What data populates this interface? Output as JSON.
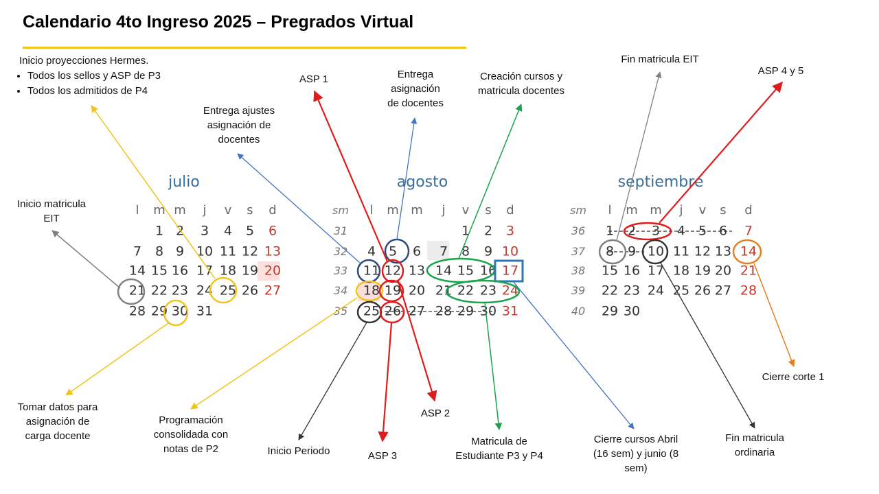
{
  "title": "Calendario 4to Ingreso 2025 – Pregrados Virtual",
  "months": [
    {
      "name": "julio",
      "headers": [
        "l",
        "m",
        "m",
        "j",
        "v",
        "s",
        "d"
      ],
      "weeks": [
        [
          "",
          "1",
          "2",
          "3",
          "4",
          "5",
          "6"
        ],
        [
          "7",
          "8",
          "9",
          "10",
          "11",
          "12",
          "13"
        ],
        [
          "14",
          "15",
          "16",
          "17",
          "18",
          "19",
          "20"
        ],
        [
          "21",
          "22",
          "23",
          "24",
          "25",
          "26",
          "27"
        ],
        [
          "28",
          "29",
          "30",
          "31",
          "",
          "",
          ""
        ]
      ]
    },
    {
      "name": "agosto",
      "week_header": "sm",
      "headers": [
        "l",
        "m",
        "m",
        "j",
        "v",
        "s",
        "d"
      ],
      "week_numbers": [
        "31",
        "32",
        "33",
        "34",
        "35"
      ],
      "weeks": [
        [
          "",
          "",
          "",
          "",
          "1",
          "2",
          "3"
        ],
        [
          "4",
          "5",
          "6",
          "7",
          "8",
          "9",
          "10"
        ],
        [
          "11",
          "12",
          "13",
          "14",
          "15",
          "16",
          "17"
        ],
        [
          "18",
          "19",
          "20",
          "21",
          "22",
          "23",
          "24"
        ],
        [
          "25",
          "26",
          "27",
          "28",
          "29",
          "30",
          "31"
        ]
      ]
    },
    {
      "name": "septiembre",
      "week_header": "sm",
      "headers": [
        "l",
        "m",
        "m",
        "j",
        "v",
        "s",
        "d"
      ],
      "week_numbers": [
        "36",
        "37",
        "38",
        "39",
        "40"
      ],
      "weeks": [
        [
          "1",
          "2",
          "3",
          "4",
          "5",
          "6",
          "7"
        ],
        [
          "8",
          "9",
          "10",
          "11",
          "12",
          "13",
          "14"
        ],
        [
          "15",
          "16",
          "17",
          "18",
          "19",
          "20",
          "21"
        ],
        [
          "22",
          "23",
          "24",
          "25",
          "26",
          "27",
          "28"
        ],
        [
          "29",
          "30",
          "",
          "",
          "",
          "",
          ""
        ]
      ]
    }
  ],
  "annotations": {
    "hermes": {
      "heading": "Inicio proyecciones Hermes.",
      "bullets": [
        "Todos los sellos y ASP de P3",
        "Todos los admitidos de P4"
      ]
    },
    "inicio_matricula_eit": "Inicio matricula\nEIT",
    "entrega_ajustes": "Entrega ajustes\nasignación de\ndocentes",
    "asp1": "ASP 1",
    "entrega_asignacion": "Entrega\nasignación\nde docentes",
    "creacion_cursos": "Creación cursos y\nmatricula docentes",
    "fin_matricula_eit": "Fin matricula EIT",
    "asp45": "ASP 4 y 5",
    "tomar_datos": "Tomar datos para\nasignación de\ncarga docente",
    "programacion": "Programación\nconsolidada con\nnotas de P2",
    "inicio_periodo": "Inicio Periodo",
    "asp3": "ASP 3",
    "asp2": "ASP 2",
    "matricula_estudiante": "Matricula de\nEstudiante P3 y P4",
    "cierre_cursos": "Cierre cursos Abril\n(16 sem)  y junio (8\nsem)",
    "fin_matricula_ordinaria": "Fin matricula\nordinaria",
    "cierre_corte": "Cierre corte 1"
  },
  "colors": {
    "yellow": "#f0c419",
    "red": "#e01b1b",
    "blue": "#4472c4",
    "navy": "#2e4a7d",
    "green": "#1aa34a",
    "gray": "#808080",
    "dark": "#333333",
    "orange": "#e67e22",
    "box_blue": "#2e75b6",
    "month": "#3b6e98"
  }
}
